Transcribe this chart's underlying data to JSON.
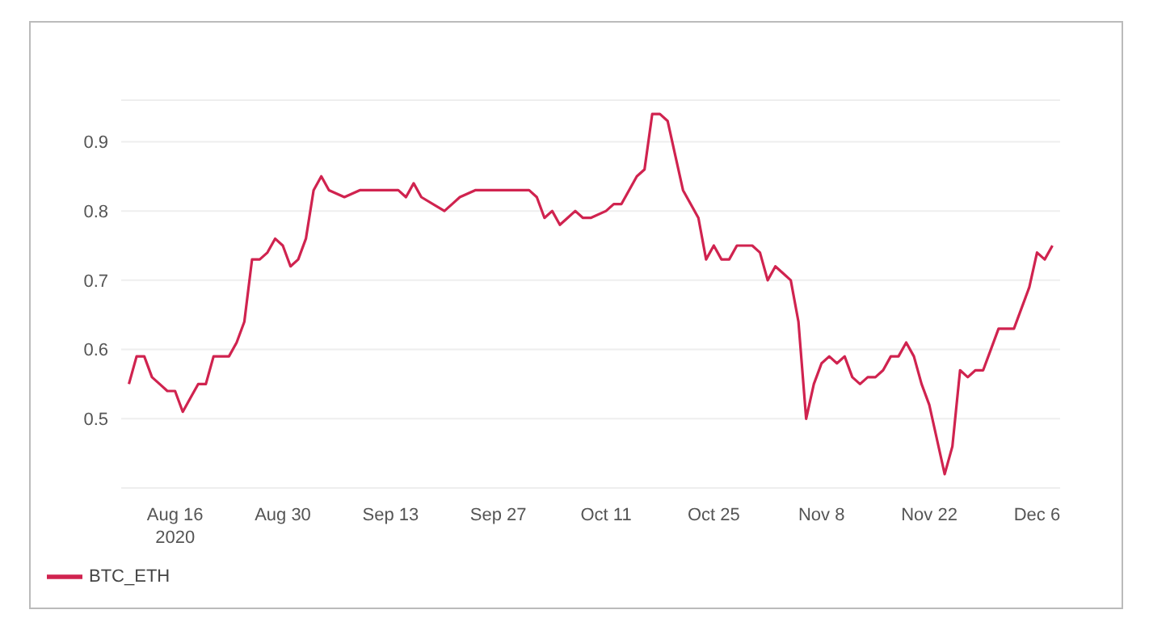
{
  "chart_data": {
    "type": "line",
    "x": [
      "2020-08-10",
      "2020-08-11",
      "2020-08-12",
      "2020-08-13",
      "2020-08-14",
      "2020-08-15",
      "2020-08-16",
      "2020-08-17",
      "2020-08-18",
      "2020-08-19",
      "2020-08-20",
      "2020-08-21",
      "2020-08-23",
      "2020-08-24",
      "2020-08-25",
      "2020-08-26",
      "2020-08-27",
      "2020-08-28",
      "2020-08-29",
      "2020-08-30",
      "2020-08-31",
      "2020-09-01",
      "2020-09-02",
      "2020-09-03",
      "2020-09-04",
      "2020-09-05",
      "2020-09-07",
      "2020-09-09",
      "2020-09-11",
      "2020-09-12",
      "2020-09-14",
      "2020-09-15",
      "2020-09-16",
      "2020-09-17",
      "2020-09-20",
      "2020-09-21",
      "2020-09-22",
      "2020-09-24",
      "2020-09-26",
      "2020-09-27",
      "2020-09-29",
      "2020-10-01",
      "2020-10-02",
      "2020-10-03",
      "2020-10-04",
      "2020-10-05",
      "2020-10-06",
      "2020-10-07",
      "2020-10-08",
      "2020-10-09",
      "2020-10-11",
      "2020-10-12",
      "2020-10-13",
      "2020-10-15",
      "2020-10-16",
      "2020-10-17",
      "2020-10-18",
      "2020-10-19",
      "2020-10-20",
      "2020-10-21",
      "2020-10-23",
      "2020-10-24",
      "2020-10-25",
      "2020-10-26",
      "2020-10-27",
      "2020-10-28",
      "2020-10-29",
      "2020-10-30",
      "2020-10-31",
      "2020-11-01",
      "2020-11-02",
      "2020-11-03",
      "2020-11-04",
      "2020-11-05",
      "2020-11-06",
      "2020-11-07",
      "2020-11-08",
      "2020-11-09",
      "2020-11-10",
      "2020-11-11",
      "2020-11-12",
      "2020-11-13",
      "2020-11-14",
      "2020-11-15",
      "2020-11-16",
      "2020-11-17",
      "2020-11-18",
      "2020-11-19",
      "2020-11-20",
      "2020-11-21",
      "2020-11-22",
      "2020-11-23",
      "2020-11-24",
      "2020-11-25",
      "2020-11-26",
      "2020-11-27",
      "2020-11-28",
      "2020-11-29",
      "2020-11-30",
      "2020-12-01",
      "2020-12-02",
      "2020-12-03",
      "2020-12-04",
      "2020-12-05",
      "2020-12-06",
      "2020-12-07",
      "2020-12-08"
    ],
    "series": [
      {
        "name": "BTC_ETH",
        "color": "#d0234f",
        "values": [
          0.55,
          0.59,
          0.59,
          0.56,
          0.55,
          0.54,
          0.54,
          0.51,
          0.53,
          0.55,
          0.55,
          0.59,
          0.59,
          0.61,
          0.64,
          0.73,
          0.73,
          0.74,
          0.76,
          0.75,
          0.72,
          0.73,
          0.76,
          0.83,
          0.85,
          0.83,
          0.82,
          0.83,
          0.83,
          0.83,
          0.83,
          0.82,
          0.84,
          0.82,
          0.8,
          0.81,
          0.82,
          0.83,
          0.83,
          0.83,
          0.83,
          0.83,
          0.82,
          0.79,
          0.8,
          0.78,
          0.79,
          0.8,
          0.79,
          0.79,
          0.8,
          0.81,
          0.81,
          0.85,
          0.86,
          0.94,
          0.94,
          0.93,
          0.88,
          0.83,
          0.79,
          0.73,
          0.75,
          0.73,
          0.73,
          0.75,
          0.75,
          0.75,
          0.74,
          0.7,
          0.72,
          0.71,
          0.7,
          0.64,
          0.5,
          0.55,
          0.58,
          0.59,
          0.58,
          0.59,
          0.56,
          0.55,
          0.56,
          0.56,
          0.57,
          0.59,
          0.59,
          0.61,
          0.59,
          0.55,
          0.52,
          0.47,
          0.42,
          0.46,
          0.57,
          0.56,
          0.57,
          0.57,
          0.6,
          0.63,
          0.63,
          0.63,
          0.66,
          0.69,
          0.74,
          0.73,
          0.75
        ]
      }
    ],
    "xlim": [
      "2020-08-09",
      "2020-12-09"
    ],
    "xticks": [
      {
        "value": "2020-08-16",
        "label": "Aug 16\n2020"
      },
      {
        "value": "2020-08-30",
        "label": "Aug 30"
      },
      {
        "value": "2020-09-13",
        "label": "Sep 13"
      },
      {
        "value": "2020-09-27",
        "label": "Sep 27"
      },
      {
        "value": "2020-10-11",
        "label": "Oct 11"
      },
      {
        "value": "2020-10-25",
        "label": "Oct 25"
      },
      {
        "value": "2020-11-08",
        "label": "Nov 8"
      },
      {
        "value": "2020-11-22",
        "label": "Nov 22"
      },
      {
        "value": "2020-12-06",
        "label": "Dec 6"
      }
    ],
    "ylim": [
      0.4,
      0.96
    ],
    "yticks": [
      0.5,
      0.6,
      0.7,
      0.8,
      0.9
    ],
    "grid": "y",
    "legend": "bottom left",
    "marker": "none",
    "line_style": "solid"
  }
}
